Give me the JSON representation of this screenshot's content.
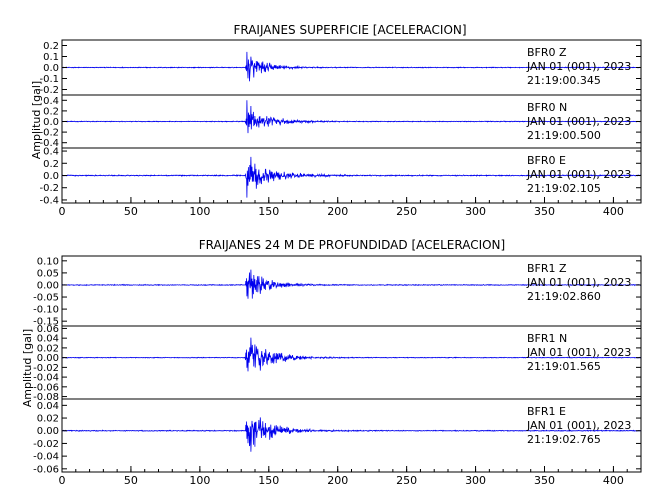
{
  "chart_data": [
    {
      "type": "line",
      "title": "FRAIJANES SUPERFICIE [ACELERACION]",
      "ylabel": "Amplitud [gal]",
      "xlabel": "",
      "xlim": [
        0,
        420
      ],
      "x_ticks": [
        0,
        50,
        100,
        150,
        200,
        250,
        300,
        350,
        400
      ],
      "onset_x": 133,
      "series": [
        {
          "station": "BFR0",
          "component": "Z",
          "date": "JAN 01 (001), 2023",
          "time": "21:19:00.345",
          "ylim": [
            -0.25,
            0.25
          ],
          "y_tick_labels": [
            "0.2",
            "0.1",
            "0.0",
            "-0.1",
            "-0.2"
          ],
          "y_tick_values": [
            0.2,
            0.1,
            0.0,
            -0.1,
            -0.2
          ],
          "noise_amplitude": 0.004,
          "peak_amplitude": 0.18,
          "decay_seconds": 12
        },
        {
          "station": "BFR0",
          "component": "N",
          "date": "JAN 01 (001), 2023",
          "time": "21:19:00.500",
          "ylim": [
            -0.5,
            0.5
          ],
          "y_tick_labels": [
            "0.4",
            "0.2",
            "0.0",
            "-0.2",
            "-0.4"
          ],
          "y_tick_values": [
            0.4,
            0.2,
            0.0,
            -0.2,
            -0.4
          ],
          "noise_amplitude": 0.008,
          "peak_amplitude": 0.45,
          "decay_seconds": 14
        },
        {
          "station": "BFR0",
          "component": "E",
          "date": "JAN 01 (001), 2023",
          "time": "21:19:02.105",
          "ylim": [
            -0.45,
            0.45
          ],
          "y_tick_labels": [
            "0.4",
            "0.2",
            "0.0",
            "-0.2",
            "-0.4"
          ],
          "y_tick_values": [
            0.4,
            0.2,
            0.0,
            -0.2,
            -0.4
          ],
          "noise_amplitude": 0.01,
          "peak_amplitude": 0.4,
          "decay_seconds": 16
        }
      ]
    },
    {
      "type": "line",
      "title": "FRAIJANES 24 M DE PROFUNDIDAD [ACELERACION]",
      "ylabel": "Amplitud [gal]",
      "xlabel": "",
      "xlim": [
        0,
        420
      ],
      "x_ticks": [
        0,
        50,
        100,
        150,
        200,
        250,
        300,
        350,
        400
      ],
      "onset_x": 133,
      "series": [
        {
          "station": "BFR1",
          "component": "Z",
          "date": "JAN 01 (001), 2023",
          "time": "21:19:02.860",
          "ylim": [
            -0.17,
            0.12
          ],
          "y_tick_labels": [
            "0.10",
            "0.05",
            "0.00",
            "-0.05",
            "-0.10",
            "-0.15"
          ],
          "y_tick_values": [
            0.1,
            0.05,
            0.0,
            -0.05,
            -0.1,
            -0.15
          ],
          "noise_amplitude": 0.002,
          "peak_amplitude": 0.1,
          "decay_seconds": 12
        },
        {
          "station": "BFR1",
          "component": "N",
          "date": "JAN 01 (001), 2023",
          "time": "21:19:01.565",
          "ylim": [
            -0.085,
            0.065
          ],
          "y_tick_labels": [
            "0.06",
            "0.04",
            "0.02",
            "0.00",
            "-0.02",
            "-0.04",
            "-0.06",
            "-0.08"
          ],
          "y_tick_values": [
            0.06,
            0.04,
            0.02,
            0.0,
            -0.02,
            -0.04,
            -0.06,
            -0.08
          ],
          "noise_amplitude": 0.0008,
          "peak_amplitude": 0.055,
          "decay_seconds": 15
        },
        {
          "station": "BFR1",
          "component": "E",
          "date": "JAN 01 (001), 2023",
          "time": "21:19:02.765",
          "ylim": [
            -0.065,
            0.05
          ],
          "y_tick_labels": [
            "0.04",
            "0.02",
            "0.00",
            "-0.02",
            "-0.04",
            "-0.06"
          ],
          "y_tick_values": [
            0.04,
            0.02,
            0.0,
            -0.02,
            -0.04,
            -0.06
          ],
          "noise_amplitude": 0.0008,
          "peak_amplitude": 0.045,
          "decay_seconds": 15
        }
      ]
    }
  ],
  "colors": {
    "trace": "#0000ee",
    "axis": "#000000",
    "background": "#ffffff"
  }
}
